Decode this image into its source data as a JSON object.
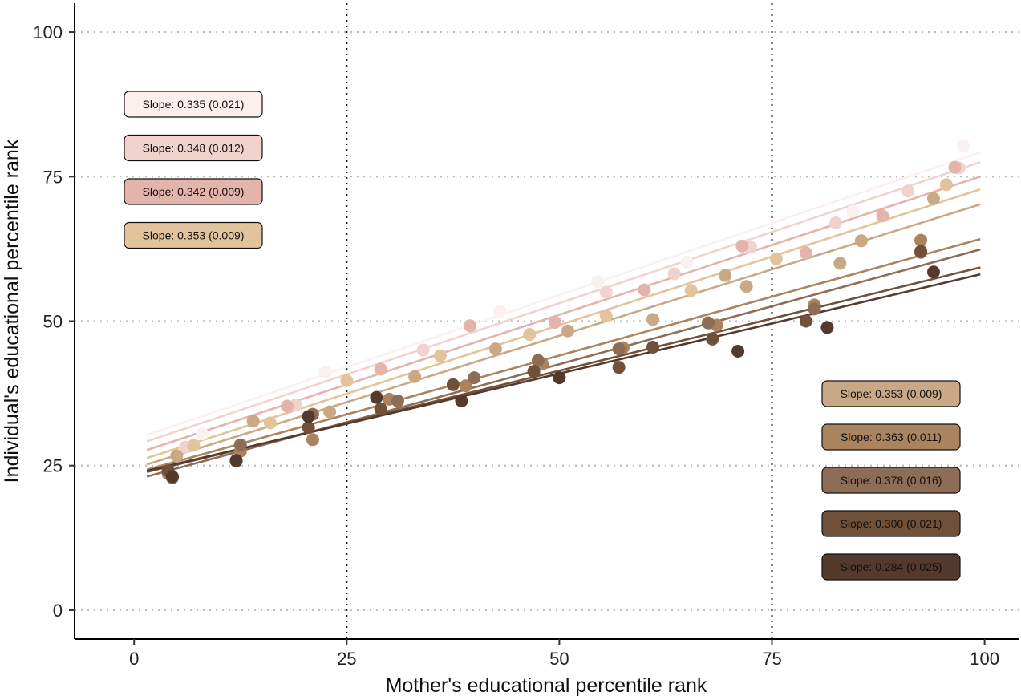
{
  "chart_data": {
    "type": "scatter",
    "title": "",
    "xlabel": "Mother's educational percentile rank",
    "ylabel": "Individual's educational percentile rank",
    "xlim": [
      -7,
      104
    ],
    "ylim": [
      -5,
      105
    ],
    "xticks": [
      0,
      25,
      50,
      75,
      100
    ],
    "yticks": [
      0,
      25,
      50,
      75,
      100
    ],
    "x_tick_labels": [
      "0",
      "25",
      "50",
      "75",
      "100"
    ],
    "y_tick_labels": [
      "0",
      "25",
      "50",
      "75",
      "100"
    ],
    "vertical_reference_lines": [
      25,
      75
    ],
    "horizontal_grid": "dotted at y ticks",
    "series": [
      {
        "color": "#fbf0ed",
        "slope_label": "Slope: 0.335 (0.021)",
        "label_position": "upper-left",
        "line": {
          "x": [
            1.5,
            99.5
          ],
          "y": [
            30.3,
            79.2
          ]
        },
        "points": [
          [
            8,
            30.5
          ],
          [
            22.5,
            41.2
          ],
          [
            43,
            51.7
          ],
          [
            54.5,
            56.8
          ],
          [
            65,
            60.2
          ],
          [
            84.5,
            69
          ],
          [
            97.5,
            80.3
          ]
        ]
      },
      {
        "color": "#f1d3cd",
        "slope_label": "Slope: 0.348 (0.012)",
        "label_position": "upper-left",
        "line": {
          "x": [
            1.5,
            99.5
          ],
          "y": [
            29.2,
            77.5
          ]
        },
        "points": [
          [
            6,
            28.2
          ],
          [
            19,
            35.5
          ],
          [
            34,
            45
          ],
          [
            55.5,
            55
          ],
          [
            63.5,
            58.2
          ],
          [
            72.5,
            62.8
          ],
          [
            82.5,
            67
          ],
          [
            91,
            72.5
          ],
          [
            97,
            76.5
          ]
        ]
      },
      {
        "color": "#e4b3ab",
        "slope_label": "Slope: 0.342 (0.009)",
        "label_position": "upper-left",
        "line": {
          "x": [
            1.5,
            99.5
          ],
          "y": [
            27.7,
            75
          ]
        },
        "points": [
          [
            18,
            35.3
          ],
          [
            29,
            41.7
          ],
          [
            39.5,
            49.2
          ],
          [
            49.5,
            49.8
          ],
          [
            60,
            55.4
          ],
          [
            71.5,
            63
          ],
          [
            79,
            61.8
          ],
          [
            88,
            68.2
          ],
          [
            96.5,
            76.6
          ]
        ]
      },
      {
        "color": "#e3c39c",
        "slope_label": "Slope: 0.353 (0.009)",
        "label_position": "upper-left",
        "line": {
          "x": [
            1.5,
            99.5
          ],
          "y": [
            26.3,
            72.8
          ]
        },
        "points": [
          [
            7,
            28.5
          ],
          [
            16,
            32.4
          ],
          [
            25,
            39.7
          ],
          [
            36,
            44
          ],
          [
            46.5,
            47.7
          ],
          [
            55.5,
            50.9
          ],
          [
            65.5,
            55.3
          ],
          [
            75.5,
            60.8
          ],
          [
            95.5,
            73.6
          ]
        ]
      },
      {
        "color": "#c9a985",
        "slope_label": "Slope: 0.353 (0.009)",
        "label_position": "lower-right",
        "line": {
          "x": [
            1.5,
            99.5
          ],
          "y": [
            25.2,
            70.2
          ]
        },
        "points": [
          [
            5,
            26.7
          ],
          [
            14,
            32.7
          ],
          [
            23,
            34.3
          ],
          [
            33,
            40.4
          ],
          [
            42.5,
            45.2
          ],
          [
            51,
            48.3
          ],
          [
            61,
            50.3
          ],
          [
            69.5,
            57.9
          ],
          [
            72,
            56
          ],
          [
            83,
            60
          ],
          [
            85.5,
            63.9
          ],
          [
            94,
            71.2
          ]
        ]
      },
      {
        "color": "#a9845f",
        "slope_label": "Slope: 0.363 (0.011)",
        "label_position": "lower-right",
        "line": {
          "x": [
            1.5,
            99.5
          ],
          "y": [
            24.3,
            64.2
          ]
        },
        "points": [
          [
            4,
            23.6
          ],
          [
            12.5,
            27.5
          ],
          [
            21,
            29.5
          ],
          [
            30,
            36.5
          ],
          [
            39,
            38.8
          ],
          [
            48,
            42.6
          ],
          [
            57.5,
            45.4
          ],
          [
            68.5,
            49.3
          ],
          [
            80,
            52.8
          ],
          [
            92.5,
            64
          ]
        ]
      },
      {
        "color": "#8d6d56",
        "slope_label": "Slope: 0.378 (0.016)",
        "label_position": "lower-right",
        "line": {
          "x": [
            1.5,
            99.5
          ],
          "y": [
            23.1,
            62.4
          ]
        },
        "points": [
          [
            4.5,
            22.9
          ],
          [
            12.5,
            28.6
          ],
          [
            21,
            33.9
          ],
          [
            31,
            36.2
          ],
          [
            40,
            40.2
          ],
          [
            47.5,
            43.2
          ],
          [
            57,
            45.2
          ],
          [
            67.5,
            49.7
          ],
          [
            80,
            52.1
          ],
          [
            92.5,
            61.9
          ]
        ]
      },
      {
        "color": "#715039",
        "slope_label": "Slope: 0.300 (0.021)",
        "label_position": "lower-right",
        "line": {
          "x": [
            1.5,
            99.5
          ],
          "y": [
            23.9,
            59.3
          ]
        },
        "points": [
          [
            4,
            24.1
          ],
          [
            12,
            25.8
          ],
          [
            20.5,
            31.6
          ],
          [
            29,
            34.8
          ],
          [
            37.5,
            39
          ],
          [
            47,
            41.3
          ],
          [
            57,
            42
          ],
          [
            61,
            45.5
          ],
          [
            68,
            46.9
          ],
          [
            79,
            50
          ],
          [
            92.5,
            62.1
          ]
        ]
      },
      {
        "color": "#533a2c",
        "slope_label": "Slope: 0.284 (0.025)",
        "label_position": "lower-right",
        "line": {
          "x": [
            1.5,
            99.5
          ],
          "y": [
            24.1,
            58.1
          ]
        },
        "points": [
          [
            4.5,
            23.1
          ],
          [
            12,
            25.9
          ],
          [
            20.5,
            33.5
          ],
          [
            28.5,
            36.8
          ],
          [
            38.5,
            36.2
          ],
          [
            50,
            40.2
          ],
          [
            71,
            44.8
          ],
          [
            81.5,
            48.9
          ],
          [
            94,
            58.5
          ]
        ]
      }
    ]
  }
}
